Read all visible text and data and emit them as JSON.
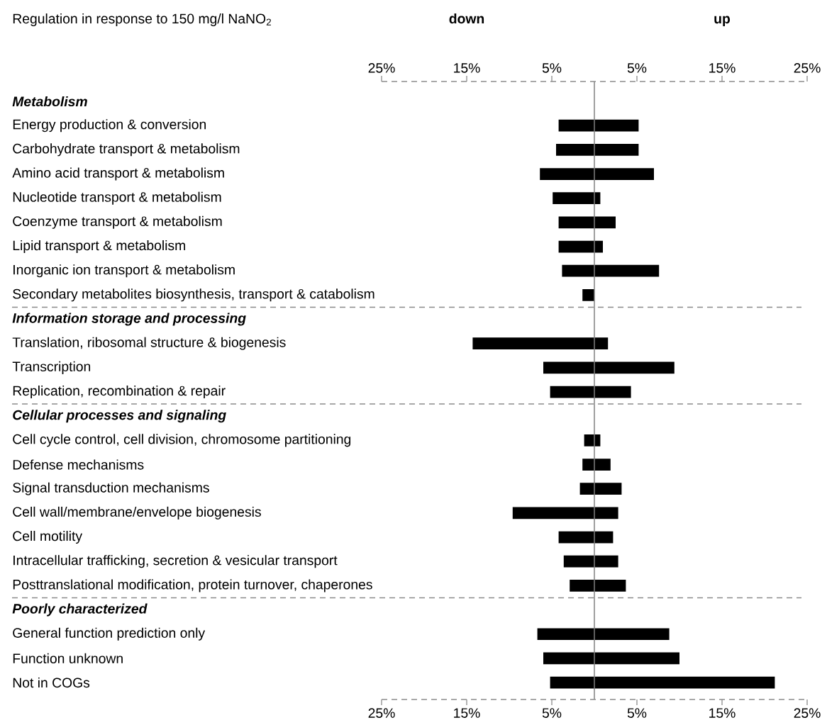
{
  "chart_data": {
    "type": "bar",
    "orientation": "horizontal",
    "title": "Regulation in response to 150 mg/l NaNO$_{2}$",
    "annotations": [
      "down",
      "up"
    ],
    "categories": [
      "Metabolism",
      "Energy production & conversion",
      "Carbohydrate transport & metabolism",
      "Amino acid transport & metabolism",
      "Nucleotide transport & metabolism",
      "Coenzyme transport & metabolism",
      "Lipid transport & metabolism",
      "Inorganic ion transport & metabolism",
      "Secondary metabolites biosynthesis, transport & catabolism",
      "Information storage and processing",
      "Translation, ribosomal structure & biogenesis",
      "Transcription",
      "Replication, recombination & repair",
      "Cellular processes and signaling",
      "Cell cycle control, cell division, chromosome partitioning",
      "Defense mechanisms",
      "Signal transduction mechanisms",
      "Cell wall/membrane/envelope biogenesis",
      "Cell motility",
      "Intracellular trafficking, secretion & vesicular transport",
      "Posttranslational modification, protein turnover, chaperones",
      "Poorly characterized",
      "General function prediction only",
      "Function unknown",
      "Not in COGs"
    ],
    "base": [
      null,
      -4.2,
      -4.5,
      -6.4,
      -4.9,
      -4.2,
      -4.2,
      -3.8,
      -1.4,
      null,
      -14.3,
      -6.0,
      -5.2,
      null,
      -1.2,
      -1.4,
      -1.7,
      -9.6,
      -4.2,
      -3.6,
      -2.9,
      null,
      -6.7,
      -6.0,
      -5.2
    ],
    "values": [
      null,
      9.4,
      9.7,
      13.4,
      5.6,
      6.7,
      5.2,
      11.4,
      1.4,
      null,
      15.9,
      15.4,
      9.5,
      null,
      1.9,
      3.3,
      4.9,
      12.4,
      6.4,
      6.4,
      6.6,
      null,
      15.5,
      16.0,
      26.4
    ],
    "color": "#000000",
    "xlim": [
      -25,
      25
    ],
    "xticks": [
      {
        "value": -25,
        "label": "25%"
      },
      {
        "value": -15,
        "label": "15%"
      },
      {
        "value": -5,
        "label": "5%"
      },
      {
        "value": 5,
        "label": "5%"
      },
      {
        "value": 15,
        "label": "15%"
      },
      {
        "value": 25,
        "label": "25%"
      }
    ],
    "x2lim": [
      -25,
      25
    ],
    "x2ticks": [
      {
        "value": -25,
        "label": "25%"
      },
      {
        "value": -15,
        "label": "15%"
      },
      {
        "value": -5,
        "label": "5%"
      },
      {
        "value": 5,
        "label": "5%"
      },
      {
        "value": 15,
        "label": "15%"
      },
      {
        "value": 25,
        "label": "25%"
      }
    ],
    "ref_lines": [
      {
        "axis": "x",
        "value": 0,
        "color": "#808080"
      }
    ]
  }
}
